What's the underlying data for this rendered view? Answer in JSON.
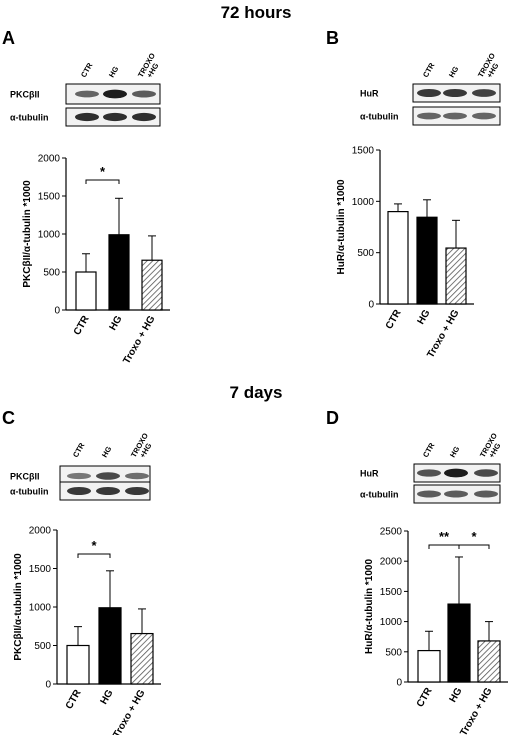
{
  "section_titles": [
    "72 hours",
    "7 days"
  ],
  "chart_data": [
    {
      "type": "bar",
      "panel_label": "A",
      "blot": {
        "lanes": [
          "CTR",
          "HG",
          "TROXO\n+HG"
        ],
        "rows": [
          {
            "label": "PKCβII",
            "intensity": [
              0.55,
              0.95,
              0.6
            ]
          },
          {
            "label": "α-tubulin",
            "intensity": [
              0.85,
              0.85,
              0.85
            ]
          }
        ]
      },
      "categories": [
        "CTR",
        "HG",
        "Troxo + HG"
      ],
      "values": [
        500,
        990,
        655
      ],
      "errors": [
        240,
        480,
        320
      ],
      "fills": [
        "white",
        "black",
        "hatch"
      ],
      "ylabel": "PKCβII/α-tubulin *1000",
      "ylim": [
        0,
        2000
      ],
      "yticks": [
        0,
        500,
        1000,
        1500,
        2000
      ],
      "significance": [
        {
          "from": 0,
          "to": 1,
          "label": "*"
        }
      ]
    },
    {
      "type": "bar",
      "panel_label": "B",
      "blot": {
        "lanes": [
          "CTR",
          "HG",
          "TROXO\n+HG"
        ],
        "rows": [
          {
            "label": "HuR",
            "intensity": [
              0.8,
              0.8,
              0.75
            ]
          },
          {
            "label": "α-tubulin",
            "intensity": [
              0.55,
              0.55,
              0.55
            ]
          }
        ]
      },
      "categories": [
        "CTR",
        "HG",
        "Troxo + HG"
      ],
      "values": [
        900,
        845,
        545
      ],
      "errors": [
        75,
        170,
        270
      ],
      "fills": [
        "white",
        "black",
        "hatch"
      ],
      "ylabel": "HuR/α-tubulin *1000",
      "ylim": [
        0,
        1500
      ],
      "yticks": [
        0,
        500,
        1000,
        1500
      ],
      "significance": []
    },
    {
      "type": "bar",
      "panel_label": "C",
      "blot": {
        "lanes": [
          "CTR",
          "HG",
          "TROXO\n+HG"
        ],
        "rows": [
          {
            "label": "PKCβII",
            "intensity": [
              0.45,
              0.7,
              0.5
            ]
          },
          {
            "label": "α-tubulin",
            "intensity": [
              0.8,
              0.8,
              0.8
            ]
          }
        ]
      },
      "categories": [
        "CTR",
        "HG",
        "Troxo + HG"
      ],
      "values": [
        500,
        990,
        655
      ],
      "errors": [
        245,
        480,
        320
      ],
      "fills": [
        "white",
        "black",
        "hatch"
      ],
      "ylabel": "PKCβII/α-tubulin *1000",
      "ylim": [
        0,
        2000
      ],
      "yticks": [
        0,
        500,
        1000,
        1500,
        2000
      ],
      "significance": [
        {
          "from": 0,
          "to": 1,
          "label": "*"
        }
      ]
    },
    {
      "type": "bar",
      "panel_label": "D",
      "blot": {
        "lanes": [
          "CTR",
          "HG",
          "TROXO\n+HG"
        ],
        "rows": [
          {
            "label": "HuR",
            "intensity": [
              0.65,
              0.95,
              0.7
            ]
          },
          {
            "label": "α-tubulin",
            "intensity": [
              0.6,
              0.6,
              0.6
            ]
          }
        ]
      },
      "categories": [
        "CTR",
        "HG",
        "Troxo + HG"
      ],
      "values": [
        520,
        1290,
        680
      ],
      "errors": [
        320,
        780,
        320
      ],
      "fills": [
        "white",
        "black",
        "hatch"
      ],
      "ylabel": "HuR/α-tubulin *1000",
      "ylim": [
        0,
        2500
      ],
      "yticks": [
        0,
        500,
        1000,
        1500,
        2000,
        2500
      ],
      "significance": [
        {
          "from": 0,
          "to": 1,
          "label": "**"
        },
        {
          "from": 1,
          "to": 2,
          "label": "*"
        }
      ]
    }
  ]
}
